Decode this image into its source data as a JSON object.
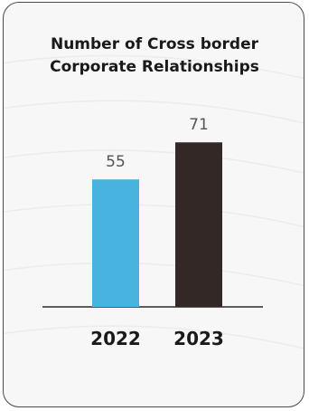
{
  "chart_data": {
    "type": "bar",
    "title_lines": [
      "Number of Cross border",
      "Corporate Relationships"
    ],
    "categories": [
      "2022",
      "2023"
    ],
    "values": [
      55,
      71
    ],
    "colors": [
      "#49b3e0",
      "#342826"
    ],
    "ylim": [
      0,
      100
    ],
    "grid": false,
    "legend": "none"
  },
  "colors": {
    "card_background": "#f7f7f8",
    "card_border": "#4a4a4a",
    "baseline": "#2a2a2a",
    "value_label": "#555555",
    "category_label": "#1a1a1a"
  }
}
